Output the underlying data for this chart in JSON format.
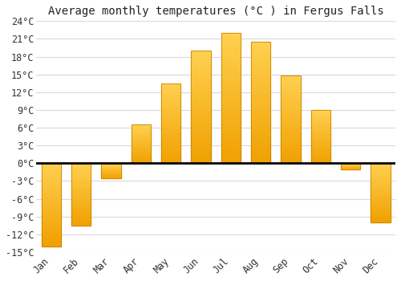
{
  "title": "Average monthly temperatures (°C ) in Fergus Falls",
  "months": [
    "Jan",
    "Feb",
    "Mar",
    "Apr",
    "May",
    "Jun",
    "Jul",
    "Aug",
    "Sep",
    "Oct",
    "Nov",
    "Dec"
  ],
  "values": [
    -14,
    -10.5,
    -2.5,
    6.5,
    13.5,
    19.0,
    22.0,
    20.5,
    14.8,
    9.0,
    -1.0,
    -10.0
  ],
  "bar_color_dark": "#F0A000",
  "bar_color_light": "#FFD050",
  "bar_edge_color": "#C07800",
  "ylim": [
    -15,
    24
  ],
  "yticks": [
    -15,
    -12,
    -9,
    -6,
    -3,
    0,
    3,
    6,
    9,
    12,
    15,
    18,
    21,
    24
  ],
  "grid_color": "#d8d8e0",
  "background_color": "#ffffff",
  "zero_line_color": "#000000",
  "title_fontsize": 10,
  "bar_width": 0.65
}
